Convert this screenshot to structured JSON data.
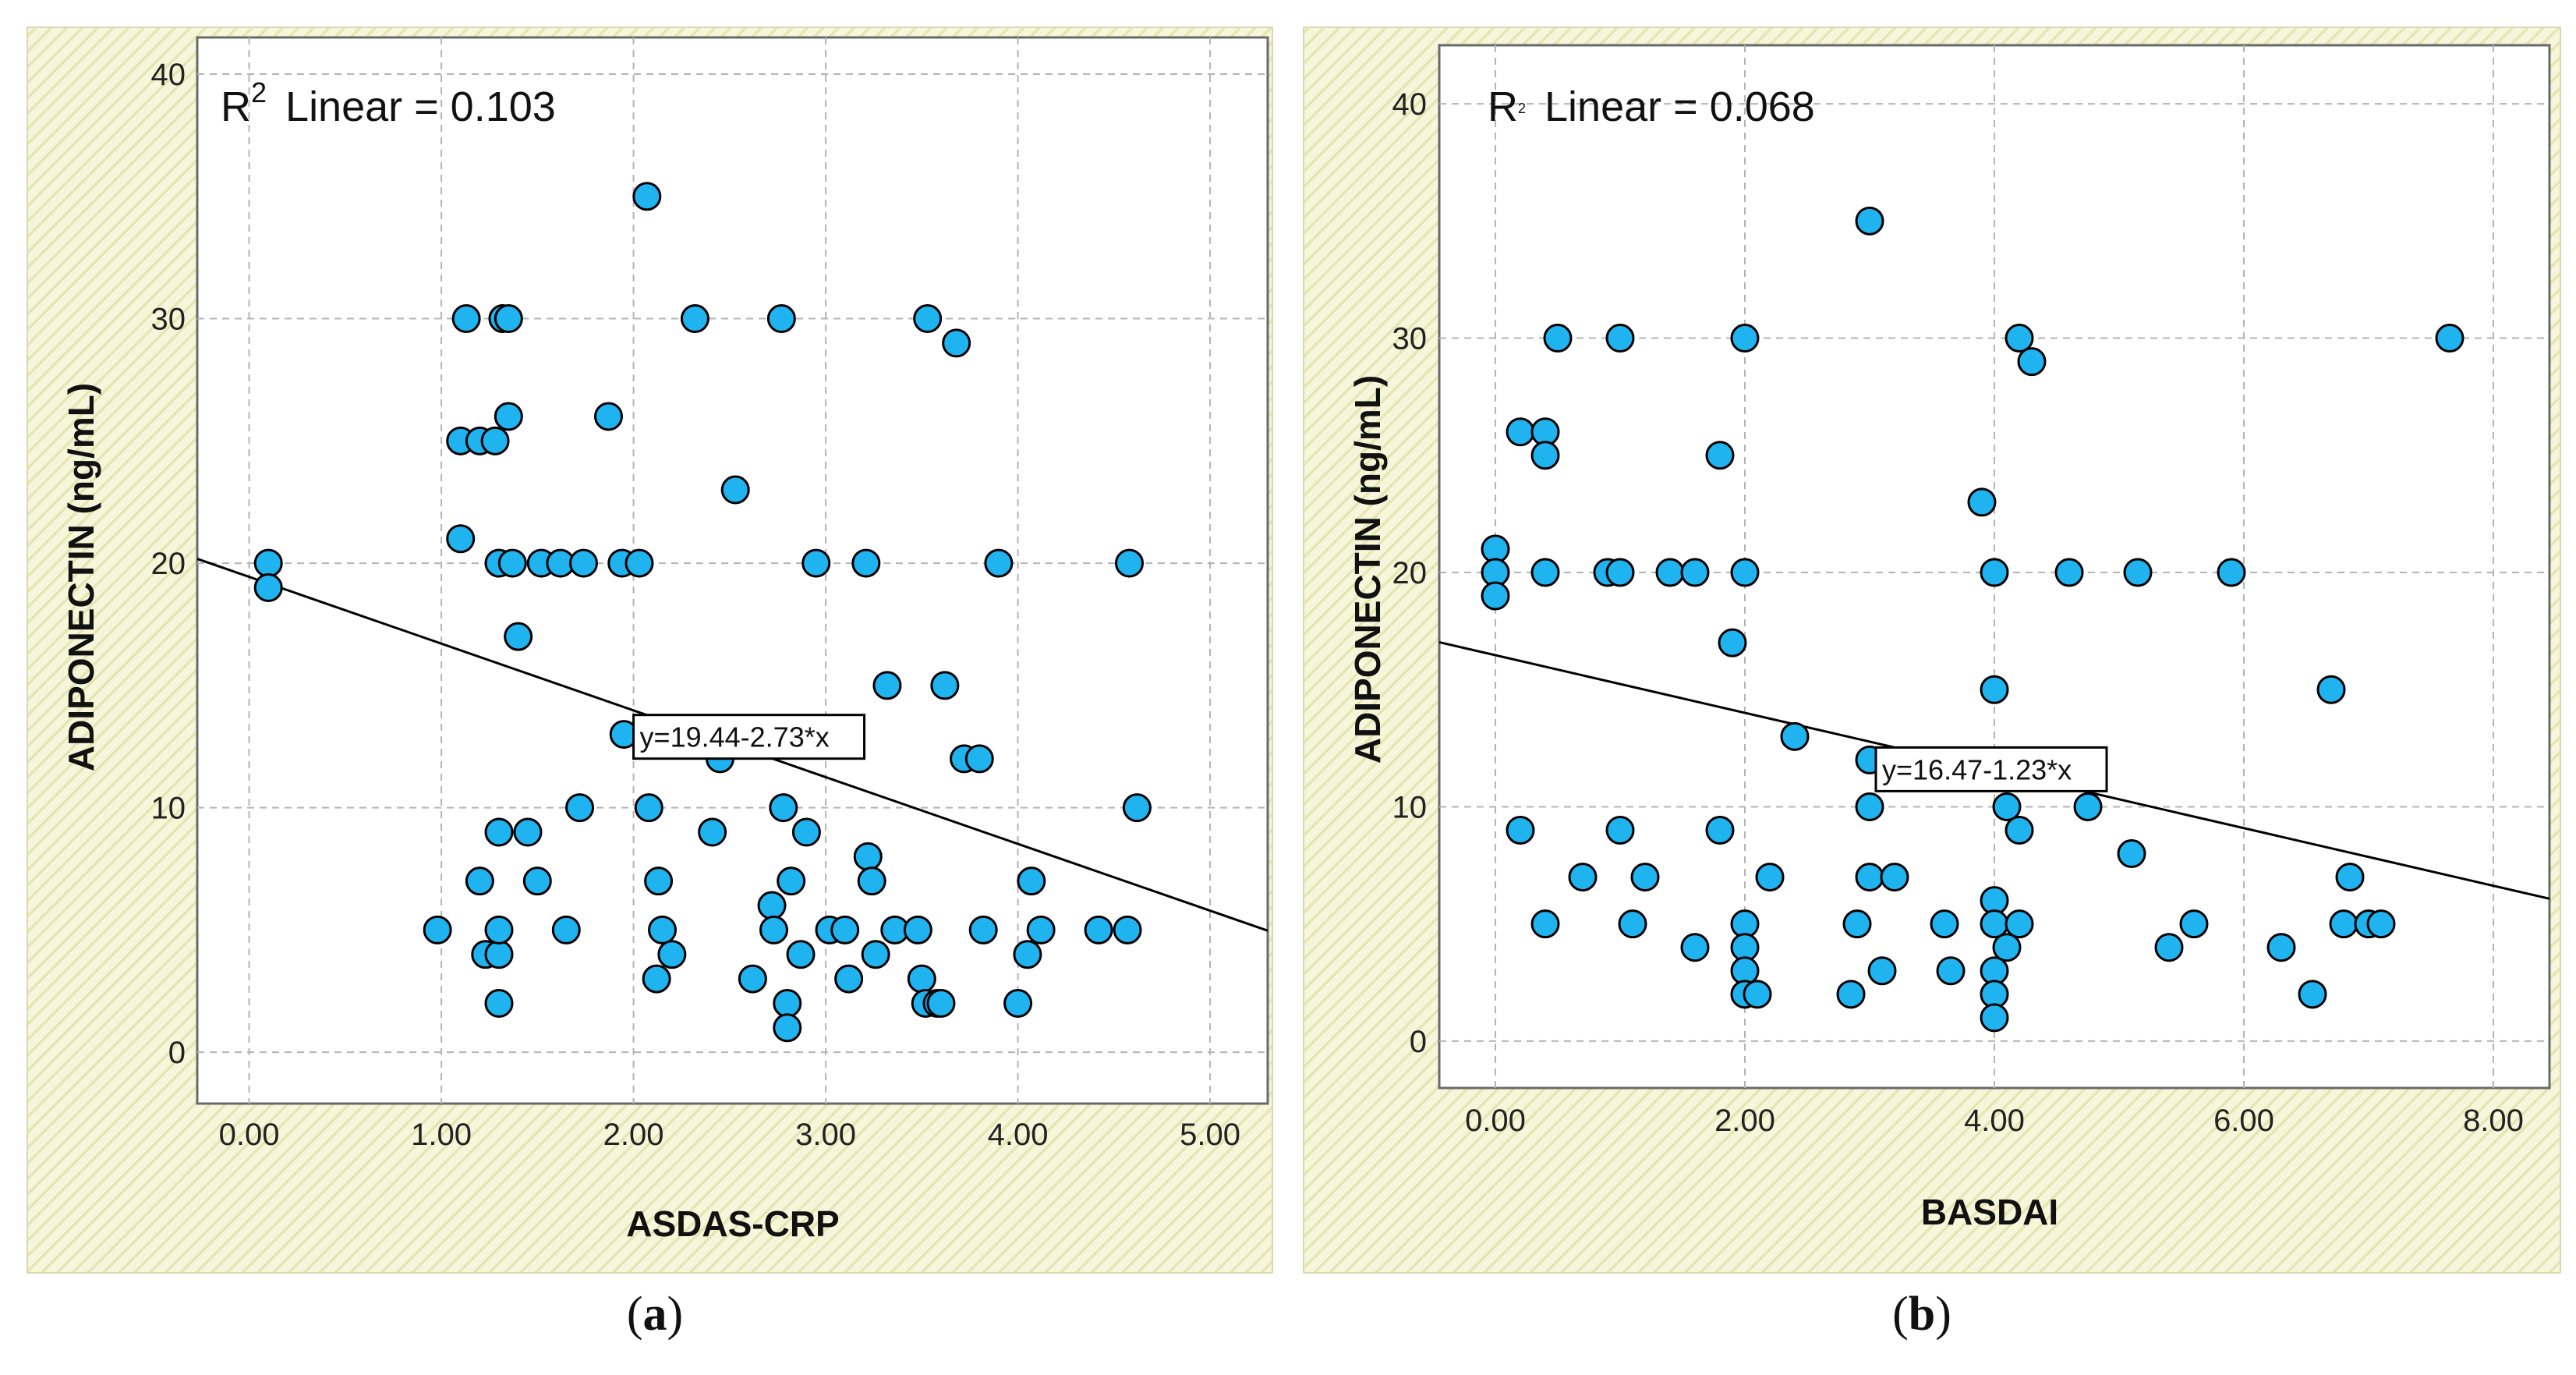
{
  "colors": {
    "background": "#f6f6db",
    "hatch": "#e6e6b3",
    "plot": "#ffffff",
    "point": "#1fb3f0",
    "point_stroke": "#000000",
    "grid": "#b4b4b4",
    "line": "#000000"
  },
  "chart_data": [
    {
      "type": "scatter",
      "panel_label": "a",
      "title": "",
      "xlabel": "ASDAS-CRP",
      "ylabel": "ADIPONECTIN (ng/mL)",
      "xlim": [
        -0.27,
        5.3
      ],
      "ylim": [
        -2.1,
        41.5
      ],
      "xticks": [
        0,
        1,
        2,
        3,
        4,
        5
      ],
      "xtick_labels": [
        "0.00",
        "1.00",
        "2.00",
        "3.00",
        "4.00",
        "5.00"
      ],
      "yticks": [
        0,
        10,
        20,
        30,
        40
      ],
      "ytick_labels": [
        "0",
        "10",
        "20",
        "30",
        "40"
      ],
      "grid": true,
      "r2_label": "Linear = 0.103",
      "r2_base": "R",
      "r2_sup": "2",
      "fit": {
        "intercept": 19.44,
        "slope": -2.73,
        "label": "y=19.44-2.73*x",
        "label_at": [
          2.0,
          12.9
        ]
      },
      "points": [
        [
          0.1,
          20
        ],
        [
          0.1,
          19
        ],
        [
          0.98,
          5
        ],
        [
          1.13,
          30
        ],
        [
          1.1,
          25
        ],
        [
          1.2,
          25
        ],
        [
          1.28,
          25
        ],
        [
          1.1,
          21
        ],
        [
          1.2,
          7
        ],
        [
          1.23,
          4
        ],
        [
          1.3,
          4
        ],
        [
          1.3,
          5
        ],
        [
          1.3,
          2
        ],
        [
          1.3,
          9
        ],
        [
          1.3,
          20
        ],
        [
          1.32,
          30
        ],
        [
          1.35,
          30
        ],
        [
          1.35,
          26
        ],
        [
          1.37,
          20
        ],
        [
          1.4,
          17
        ],
        [
          1.45,
          9
        ],
        [
          1.5,
          7
        ],
        [
          1.52,
          20
        ],
        [
          1.62,
          20
        ],
        [
          1.65,
          5
        ],
        [
          1.72,
          10
        ],
        [
          1.74,
          20
        ],
        [
          1.87,
          26
        ],
        [
          1.94,
          20
        ],
        [
          1.95,
          13
        ],
        [
          2.03,
          20
        ],
        [
          2.07,
          35
        ],
        [
          2.08,
          10
        ],
        [
          2.12,
          3
        ],
        [
          2.13,
          7
        ],
        [
          2.15,
          5
        ],
        [
          2.2,
          4
        ],
        [
          2.32,
          30
        ],
        [
          2.41,
          9
        ],
        [
          2.45,
          12
        ],
        [
          2.53,
          23
        ],
        [
          2.62,
          3
        ],
        [
          2.72,
          6
        ],
        [
          2.73,
          5
        ],
        [
          2.77,
          30
        ],
        [
          2.78,
          10
        ],
        [
          2.8,
          2
        ],
        [
          2.8,
          1
        ],
        [
          2.82,
          7
        ],
        [
          2.87,
          4
        ],
        [
          2.9,
          9
        ],
        [
          2.95,
          20
        ],
        [
          3.02,
          5
        ],
        [
          3.1,
          5
        ],
        [
          3.12,
          3
        ],
        [
          3.21,
          20
        ],
        [
          3.22,
          8
        ],
        [
          3.24,
          7
        ],
        [
          3.26,
          4
        ],
        [
          3.32,
          15
        ],
        [
          3.36,
          5
        ],
        [
          3.48,
          5
        ],
        [
          3.5,
          3
        ],
        [
          3.52,
          2
        ],
        [
          3.53,
          30
        ],
        [
          3.58,
          2
        ],
        [
          3.6,
          2
        ],
        [
          3.62,
          15
        ],
        [
          3.68,
          29
        ],
        [
          3.72,
          12
        ],
        [
          3.8,
          12
        ],
        [
          3.82,
          5
        ],
        [
          3.9,
          20
        ],
        [
          4.0,
          2
        ],
        [
          4.05,
          4
        ],
        [
          4.07,
          7
        ],
        [
          4.12,
          5
        ],
        [
          4.42,
          5
        ],
        [
          4.57,
          5
        ],
        [
          4.58,
          20
        ],
        [
          4.62,
          10
        ]
      ]
    },
    {
      "type": "scatter",
      "panel_label": "b",
      "title": "",
      "xlabel": "BASDAI",
      "ylabel": "ADIPONECTIN (ng/mL)",
      "xlim": [
        -0.45,
        8.45
      ],
      "ylim": [
        -2.0,
        42.5
      ],
      "xticks": [
        0,
        2,
        4,
        6,
        8
      ],
      "xtick_labels": [
        "0.00",
        "2.00",
        "4.00",
        "6.00",
        "8.00"
      ],
      "yticks": [
        0,
        10,
        20,
        30,
        40
      ],
      "ytick_labels": [
        "0",
        "10",
        "20",
        "30",
        "40"
      ],
      "grid": true,
      "r2_label": "Linear = 0.068",
      "r2_base": "R",
      "r2_sup": "2",
      "fit": {
        "intercept": 16.47,
        "slope": -1.23,
        "label": "y=16.47-1.23*x",
        "label_at": [
          3.05,
          11.6
        ]
      },
      "points": [
        [
          0,
          21
        ],
        [
          0,
          20
        ],
        [
          0,
          19
        ],
        [
          0.2,
          9
        ],
        [
          0.2,
          26
        ],
        [
          0.4,
          26
        ],
        [
          0.4,
          25
        ],
        [
          0.4,
          20
        ],
        [
          0.4,
          5
        ],
        [
          0.5,
          30
        ],
        [
          0.7,
          7
        ],
        [
          0.9,
          20
        ],
        [
          1.0,
          20
        ],
        [
          1.0,
          30
        ],
        [
          1.0,
          9
        ],
        [
          1.1,
          5
        ],
        [
          1.2,
          7
        ],
        [
          1.4,
          20
        ],
        [
          1.6,
          20
        ],
        [
          1.6,
          4
        ],
        [
          1.8,
          25
        ],
        [
          1.8,
          9
        ],
        [
          1.9,
          17
        ],
        [
          2.0,
          30
        ],
        [
          2.0,
          20
        ],
        [
          2.0,
          5
        ],
        [
          2.0,
          4
        ],
        [
          2.0,
          3
        ],
        [
          2.0,
          2
        ],
        [
          2.1,
          2
        ],
        [
          2.2,
          7
        ],
        [
          2.4,
          13
        ],
        [
          2.85,
          2
        ],
        [
          2.9,
          5
        ],
        [
          3.0,
          35
        ],
        [
          3.0,
          12
        ],
        [
          3.0,
          10
        ],
        [
          3.0,
          7
        ],
        [
          3.1,
          3
        ],
        [
          3.2,
          7
        ],
        [
          3.6,
          5
        ],
        [
          3.65,
          3
        ],
        [
          3.9,
          23
        ],
        [
          4.0,
          20
        ],
        [
          4.0,
          15
        ],
        [
          4.0,
          6
        ],
        [
          4.0,
          5
        ],
        [
          4.0,
          3
        ],
        [
          4.0,
          2
        ],
        [
          4.0,
          1
        ],
        [
          4.1,
          10
        ],
        [
          4.1,
          4
        ],
        [
          4.2,
          30
        ],
        [
          4.2,
          9
        ],
        [
          4.2,
          5
        ],
        [
          4.3,
          29
        ],
        [
          4.6,
          20
        ],
        [
          4.75,
          10
        ],
        [
          5.1,
          8
        ],
        [
          5.15,
          20
        ],
        [
          5.4,
          4
        ],
        [
          5.6,
          5
        ],
        [
          5.9,
          20
        ],
        [
          6.3,
          4
        ],
        [
          6.55,
          2
        ],
        [
          6.7,
          15
        ],
        [
          6.8,
          5
        ],
        [
          6.85,
          7
        ],
        [
          7.0,
          5
        ],
        [
          7.1,
          5
        ],
        [
          7.65,
          30
        ]
      ]
    }
  ],
  "captions": [
    {
      "open": "(",
      "letter": "a",
      "close": ")"
    },
    {
      "open": "(",
      "letter": "b",
      "close": ")"
    }
  ]
}
